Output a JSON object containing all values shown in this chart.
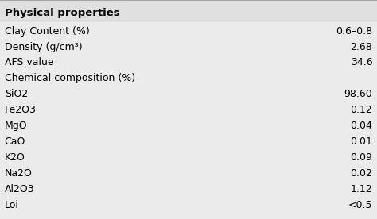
{
  "title": "Physical properties",
  "bg_color": "#ebebeb",
  "title_color": "#000000",
  "text_color": "#000000",
  "title_fontsize": 9.5,
  "body_fontsize": 9.0,
  "line_color": "#888888",
  "rows": [
    {
      "label": "Clay Content (%)",
      "value": "0.6–0.8"
    },
    {
      "label": "Density (g/cm³)",
      "value": "2.68"
    },
    {
      "label": "AFS value",
      "value": "34.6"
    },
    {
      "label": "Chemical composition (%)",
      "value": ""
    },
    {
      "label": "SiO2",
      "value": "98.60"
    },
    {
      "label": "Fe2O3",
      "value": "0.12"
    },
    {
      "label": "MgO",
      "value": "0.04"
    },
    {
      "label": "CaO",
      "value": "0.01"
    },
    {
      "label": "K2O",
      "value": "0.09"
    },
    {
      "label": "Na2O",
      "value": "0.02"
    },
    {
      "label": "Al2O3",
      "value": "1.12"
    },
    {
      "label": "Loi",
      "value": "<0.5"
    }
  ]
}
